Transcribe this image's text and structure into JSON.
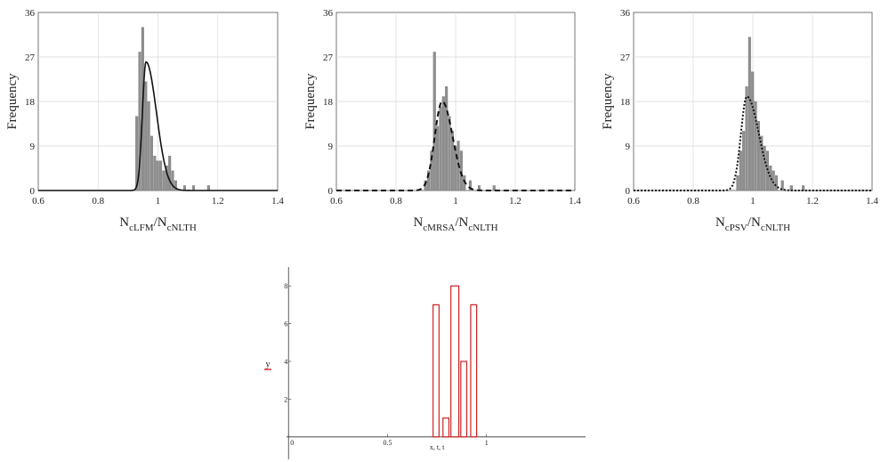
{
  "chart_data": [
    {
      "type": "bar",
      "panel": "histogram-1",
      "ylabel": "Frequency",
      "xlabel_main": "N",
      "xlabel_sub1": "cLFM",
      "xlabel_slash": "/N",
      "xlabel_sub2": "cNLTH",
      "xlim": [
        0.6,
        1.4
      ],
      "ylim": [
        0,
        36
      ],
      "xticks": [
        0.6,
        0.8,
        1,
        1.2,
        1.4
      ],
      "xtick_labels": [
        "0.6",
        "0.8",
        "1",
        "1.2",
        "1.4"
      ],
      "yticks": [
        0,
        9,
        18,
        27,
        36
      ],
      "ytick_labels": [
        "0",
        "9",
        "18",
        "27",
        "36"
      ],
      "grid": true,
      "bin_width": 0.01,
      "bins_x": [
        0.93,
        0.94,
        0.95,
        0.96,
        0.97,
        0.98,
        0.99,
        1.0,
        1.01,
        1.02,
        1.03,
        1.04,
        1.05,
        1.06,
        1.09,
        1.12,
        1.17
      ],
      "bins_y": [
        15,
        28,
        33,
        22,
        18,
        11,
        7,
        6,
        6,
        4,
        5,
        7,
        4,
        2,
        1,
        1,
        1
      ],
      "fit_style": "solid",
      "fit_peak_x": 0.96,
      "fit_peak_y": 26,
      "fit_left_sd": 0.012,
      "fit_right_sd": 0.035
    },
    {
      "type": "bar",
      "panel": "histogram-2",
      "ylabel": "Frequency",
      "xlabel_main": "N",
      "xlabel_sub1": "cMRSA",
      "xlabel_slash": "/N",
      "xlabel_sub2": "cNLTH",
      "xlim": [
        0.6,
        1.4
      ],
      "ylim": [
        0,
        36
      ],
      "xticks": [
        0.6,
        0.8,
        1,
        1.2,
        1.4
      ],
      "xtick_labels": [
        "0.6",
        "0.8",
        "1",
        "1.2",
        "1.4"
      ],
      "yticks": [
        0,
        9,
        18,
        27,
        36
      ],
      "ytick_labels": [
        "0",
        "9",
        "18",
        "27",
        "36"
      ],
      "grid": true,
      "bin_width": 0.01,
      "bins_x": [
        0.9,
        0.91,
        0.92,
        0.93,
        0.94,
        0.95,
        0.96,
        0.97,
        0.98,
        0.99,
        1.0,
        1.01,
        1.02,
        1.03,
        1.05,
        1.08,
        1.13
      ],
      "bins_y": [
        2,
        4,
        8,
        28,
        13,
        17,
        19,
        21,
        15,
        12,
        9,
        10,
        8,
        3,
        2,
        1,
        1
      ],
      "fit_style": "dashed",
      "fit_peak_x": 0.955,
      "fit_peak_y": 18,
      "fit_left_sd": 0.025,
      "fit_right_sd": 0.035
    },
    {
      "type": "bar",
      "panel": "histogram-3",
      "ylabel": "Frequency",
      "xlabel_main": "N",
      "xlabel_sub1": "cPSV",
      "xlabel_slash": "/N",
      "xlabel_sub2": "cNLTH",
      "xlim": [
        0.6,
        1.4
      ],
      "ylim": [
        0,
        36
      ],
      "xticks": [
        0.6,
        0.8,
        1,
        1.2,
        1.4
      ],
      "xtick_labels": [
        "0.6",
        "0.8",
        "1",
        "1.2",
        "1.4"
      ],
      "yticks": [
        0,
        9,
        18,
        27,
        36
      ],
      "ytick_labels": [
        "0",
        "9",
        "18",
        "27",
        "36"
      ],
      "grid": true,
      "bin_width": 0.01,
      "bins_x": [
        0.95,
        0.96,
        0.97,
        0.98,
        0.99,
        1.0,
        1.01,
        1.02,
        1.03,
        1.04,
        1.05,
        1.06,
        1.07,
        1.08,
        1.1,
        1.13,
        1.17
      ],
      "bins_y": [
        3,
        8,
        12,
        21,
        31,
        24,
        18,
        14,
        11,
        9,
        8,
        5,
        4,
        3,
        2,
        1,
        1
      ],
      "fit_style": "dotted",
      "fit_peak_x": 0.98,
      "fit_peak_y": 19,
      "fit_left_sd": 0.02,
      "fit_right_sd": 0.04
    },
    {
      "type": "bar",
      "panel": "histogram-4",
      "ylabel": "y",
      "xlabel": "x, t, t",
      "xlim": [
        -0.01,
        1.5
      ],
      "ylim": [
        -1,
        9
      ],
      "xticks": [
        0,
        0.5,
        1
      ],
      "xtick_labels": [
        "0",
        "0.5",
        "1"
      ],
      "yticks": [
        2,
        4,
        6,
        8
      ],
      "ytick_labels": [
        "2",
        "4",
        "6",
        "8"
      ],
      "bins": [
        {
          "x0": 0.73,
          "x1": 0.76,
          "y": 7
        },
        {
          "x0": 0.78,
          "x1": 0.81,
          "y": 1
        },
        {
          "x0": 0.82,
          "x1": 0.86,
          "y": 8
        },
        {
          "x0": 0.87,
          "x1": 0.9,
          "y": 4
        },
        {
          "x0": 0.92,
          "x1": 0.95,
          "y": 7
        }
      ],
      "color": "#cc2222",
      "axis_color": "#333333"
    }
  ]
}
